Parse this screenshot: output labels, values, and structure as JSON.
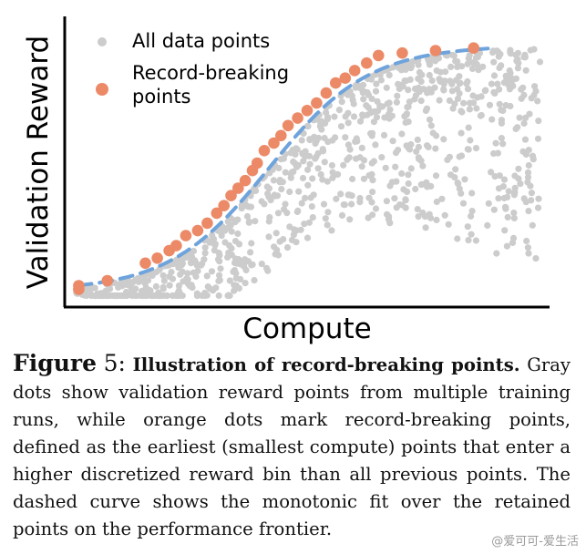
{
  "chart_data": {
    "type": "scatter",
    "xlabel": "Compute",
    "ylabel": "Validation Reward",
    "grid": false,
    "legend_position": "top-left",
    "series": [
      {
        "name": "All data points",
        "color": "#cccccc"
      },
      {
        "name": "Record-breaking\n points",
        "color": "#ec8a68"
      },
      {
        "color": "#6fa3dc",
        "style": "dashed"
      }
    ],
    "record_points": [
      [
        0.02,
        0.06
      ],
      [
        0.02,
        0.045
      ],
      [
        0.08,
        0.08
      ],
      [
        0.16,
        0.15
      ],
      [
        0.185,
        0.17
      ],
      [
        0.21,
        0.2
      ],
      [
        0.225,
        0.22
      ],
      [
        0.245,
        0.26
      ],
      [
        0.27,
        0.28
      ],
      [
        0.29,
        0.31
      ],
      [
        0.31,
        0.35
      ],
      [
        0.325,
        0.38
      ],
      [
        0.34,
        0.42
      ],
      [
        0.355,
        0.45
      ],
      [
        0.37,
        0.48
      ],
      [
        0.385,
        0.52
      ],
      [
        0.395,
        0.55
      ],
      [
        0.41,
        0.6
      ],
      [
        0.43,
        0.63
      ],
      [
        0.445,
        0.66
      ],
      [
        0.46,
        0.7
      ],
      [
        0.48,
        0.73
      ],
      [
        0.5,
        0.76
      ],
      [
        0.52,
        0.79
      ],
      [
        0.54,
        0.83
      ],
      [
        0.56,
        0.87
      ],
      [
        0.58,
        0.89
      ],
      [
        0.6,
        0.92
      ],
      [
        0.625,
        0.95
      ],
      [
        0.65,
        0.98
      ],
      [
        0.7,
        0.99
      ],
      [
        0.77,
        1.0
      ],
      [
        0.85,
        1.01
      ]
    ],
    "xlim": [
      0,
      1
    ],
    "ylim": [
      0,
      1.1
    ]
  },
  "caption": {
    "label": "Figure",
    "number": "5:",
    "heading": "Illustration of record-breaking points.",
    "body": "Gray dots show validation reward points from multiple training runs, while orange dots mark record-breaking points, defined as the earliest (smallest compute) points that enter a higher discretized reward bin than all previous points. The dashed curve shows the monotonic fit over the retained points on the performance frontier."
  },
  "watermark": "@爱可可-爱生活"
}
